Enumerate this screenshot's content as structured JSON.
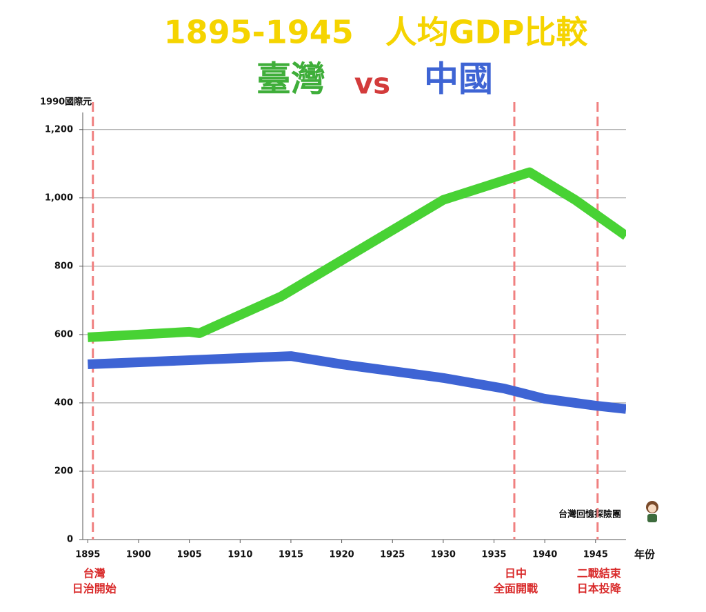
{
  "chart_data": {
    "type": "line",
    "title": "1895-1945　人均GDP比較",
    "subtitle_separator": "vs",
    "y_label": "1990國際元",
    "x_label": "年份",
    "watermark": "台灣回憶探險團",
    "xlim": [
      1894.5,
      1948
    ],
    "xticks": [
      1895,
      1900,
      1905,
      1910,
      1915,
      1920,
      1925,
      1930,
      1935,
      1940,
      1945
    ],
    "ylim": [
      0,
      1250
    ],
    "yticks": [
      0,
      200,
      400,
      600,
      800,
      {
        "value": 1000,
        "label": "1,000"
      },
      {
        "value": 1200,
        "label": "1,200"
      }
    ],
    "grid": true,
    "series": [
      {
        "name": "臺灣",
        "color": "#48d234",
        "x": [
          1895,
          1905,
          1906,
          1914,
          1930,
          1938.5,
          1943,
          1948
        ],
        "values": [
          592,
          608,
          604,
          711,
          994,
          1075,
          994,
          889
        ]
      },
      {
        "name": "中國",
        "color": "#3e64d4",
        "x": [
          1895,
          1915,
          1920,
          1930,
          1936,
          1940,
          1945,
          1948
        ],
        "values": [
          513,
          537,
          513,
          473,
          442,
          412,
          392,
          382
        ]
      }
    ],
    "annotations": [
      {
        "x": 1895.5,
        "lines": [
          "台灣",
          "日治開始"
        ]
      },
      {
        "x": 1937,
        "lines": [
          "日中",
          "全面開戰"
        ]
      },
      {
        "x": 1945.2,
        "lines": [
          "二戰結束",
          "日本投降"
        ]
      }
    ]
  }
}
